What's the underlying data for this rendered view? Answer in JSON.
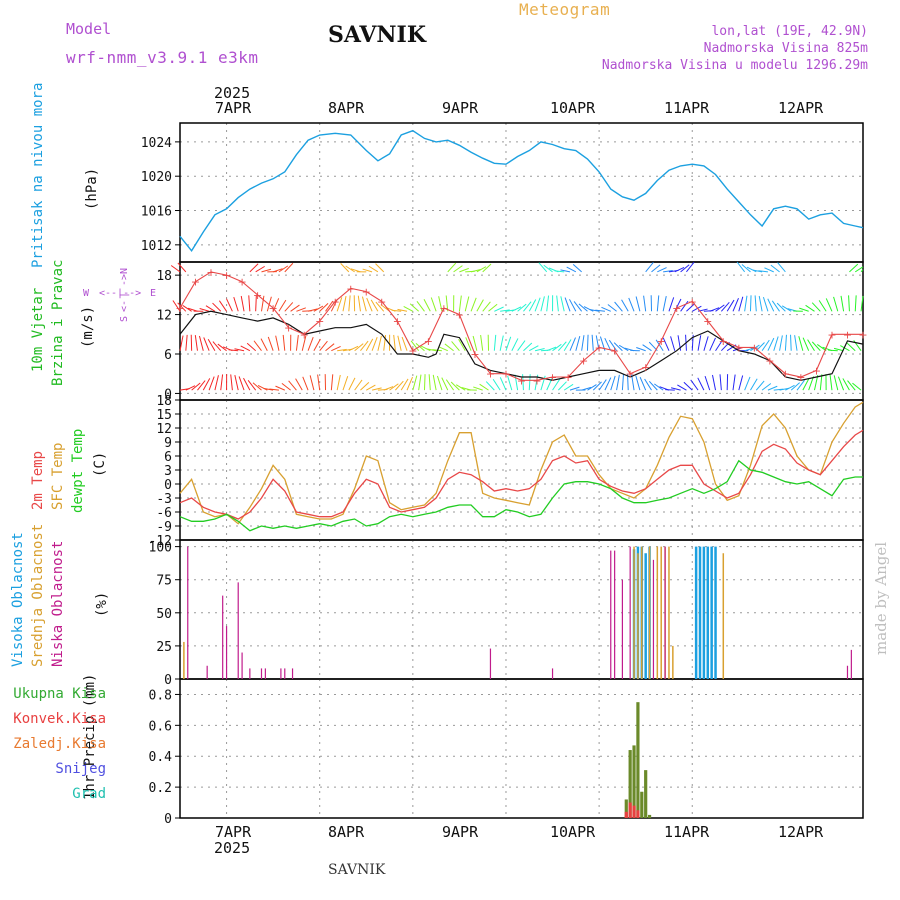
{
  "header": {
    "model_label": "Model",
    "model_name": "wrf-nmm_v3.9.1 e3km",
    "station": "SAVNIK",
    "product": "Meteogram",
    "lonlat": "lon,lat (19E, 42.9N)",
    "altitude": "Nadmorska Visina 825m",
    "model_altitude": "Nadmorska Visina u modelu 1296.29m",
    "year": "2025",
    "footer_station": "SAVNIK",
    "watermark": "made by Angel"
  },
  "colors": {
    "pressure": "#1ca0e0",
    "wind_label": "#22bb22",
    "temp2m": "#e84848",
    "tsfc": "#d8a030",
    "dewpt": "#22cc22",
    "cloud_high": "#1ca0e0",
    "cloud_mid": "#d8a030",
    "cloud_low": "#c01c8c",
    "precip_total": "#33aa33",
    "precip_conv": "#e84040",
    "precip_frz": "#e87a30",
    "snow": "#5050e0",
    "hail": "#20c0b0",
    "header_purple": "#b050d0",
    "header_orange": "#e8b050"
  },
  "days": [
    "7APR",
    "8APR",
    "9APR",
    "10APR",
    "11APR",
    "12APR"
  ],
  "panels": {
    "pressure": {
      "label1": "Pritisak na nivou mora",
      "unit": "(hPa)"
    },
    "wind": {
      "label1": "10m Vjetar",
      "label2": "Brzina i Pravac",
      "unit": "(m/s)",
      "compass_n": "N",
      "compass_s": "S",
      "compass_w": "W",
      "compass_e": "E"
    },
    "temp": {
      "label1": "2m Temp",
      "label2": "SFC Temp",
      "label3": "dewpt Temp",
      "unit": "(C)"
    },
    "cloud": {
      "label1": "Visoka Oblacnost",
      "label2": "Srednja Oblacnost",
      "label3": "Niska Oblacnost",
      "unit": "(%)"
    },
    "precip": {
      "unit_label": "1hr Precip (mm)",
      "legend": [
        "Ukupna Kisa",
        "Konvek.Kisa",
        "Zaledj.Kisa",
        "Snijeg",
        "Grad"
      ]
    }
  },
  "chart_data": [
    {
      "type": "line",
      "name": "pressure",
      "title": "Pritisak na nivou mora",
      "ylabel": "(hPa)",
      "ylim": [
        1010,
        1026.2
      ],
      "yticks": [
        1012,
        1016,
        1020,
        1024
      ],
      "grid": true,
      "x_unit": "hours since 2025-04-06 12:00",
      "series": [
        {
          "name": "MSLP",
          "x": [
            0,
            3,
            6,
            9,
            12,
            15,
            18,
            21,
            24,
            27,
            30,
            33,
            36,
            40,
            44,
            48,
            51,
            54,
            57,
            60,
            63,
            66,
            69,
            72,
            75,
            78,
            81,
            84,
            87,
            90,
            93,
            96,
            99,
            102,
            105,
            108,
            111,
            114,
            117,
            120,
            123,
            126,
            129,
            132,
            135,
            138,
            141,
            144,
            147,
            150,
            153,
            156,
            159,
            162,
            165,
            168,
            171,
            174,
            176
          ],
          "values": [
            1013,
            1011.3,
            1013.5,
            1015.5,
            1016.2,
            1017.5,
            1018.5,
            1019.2,
            1019.7,
            1020.5,
            1022.5,
            1024.2,
            1024.8,
            1025,
            1024.8,
            1023,
            1021.8,
            1022.6,
            1024.8,
            1025.3,
            1024.4,
            1024,
            1024.2,
            1023.6,
            1022.8,
            1022.1,
            1021.5,
            1021.4,
            1022.3,
            1023,
            1024,
            1023.7,
            1023.2,
            1023,
            1022,
            1020.5,
            1018.5,
            1017.6,
            1017.2,
            1018,
            1019.5,
            1020.7,
            1021.2,
            1021.4,
            1021.2,
            1020.2,
            1018.5,
            1017,
            1015.5,
            1014.2,
            1016.2,
            1016.5,
            1016.2,
            1015,
            1015.5,
            1015.7,
            1014.5,
            1014.2,
            1014
          ]
        }
      ]
    },
    {
      "type": "line",
      "name": "wind",
      "title": "10m Vjetar Brzina i Pravac",
      "ylabel": "(m/s)",
      "ylim": [
        -1,
        20
      ],
      "yticks": [
        0,
        6,
        12,
        18
      ],
      "grid": true,
      "series": [
        {
          "name": "speed",
          "x": [
            0,
            4,
            8,
            12,
            16,
            20,
            24,
            28,
            32,
            36,
            40,
            44,
            48,
            52,
            56,
            60,
            64,
            66,
            68,
            72,
            76,
            80,
            84,
            88,
            92,
            96,
            100,
            104,
            108,
            112,
            116,
            120,
            124,
            128,
            132,
            136,
            140,
            144,
            148,
            152,
            156,
            160,
            164,
            168,
            172,
            176
          ],
          "values": [
            9,
            12,
            12.5,
            12,
            11.5,
            11,
            11.5,
            10.5,
            9,
            9.5,
            10,
            10,
            10.5,
            9,
            6,
            6,
            5.5,
            6,
            9,
            8.5,
            4.5,
            3.5,
            3,
            2.5,
            2.5,
            2,
            2.5,
            3,
            3.5,
            3.5,
            2.5,
            3.5,
            5,
            6.5,
            8.5,
            9.5,
            8,
            6.5,
            6,
            5,
            2.5,
            2,
            2.5,
            3,
            8,
            7.5
          ]
        },
        {
          "name": "gust",
          "x": [
            0,
            4,
            8,
            12,
            16,
            20,
            24,
            28,
            32,
            36,
            40,
            44,
            48,
            52,
            56,
            60,
            64,
            68,
            72,
            76,
            80,
            84,
            88,
            92,
            96,
            100,
            104,
            108,
            112,
            116,
            120,
            124,
            128,
            132,
            136,
            140,
            144,
            148,
            152,
            156,
            160,
            164,
            168,
            172,
            176
          ],
          "values": [
            13,
            17,
            18.5,
            18,
            17,
            15,
            13,
            10,
            9,
            11,
            14,
            16,
            15.5,
            14,
            11,
            6.5,
            8,
            13,
            12,
            6,
            3,
            3,
            2,
            2,
            2.5,
            2.5,
            5,
            7,
            6.5,
            3,
            4,
            8,
            13,
            14,
            11,
            8,
            7,
            7,
            5,
            3,
            2.5,
            3.5,
            9,
            9,
            9
          ]
        }
      ]
    },
    {
      "type": "line",
      "name": "temperature",
      "title": "2m Temp / SFC Temp / dewpt Temp",
      "ylabel": "(C)",
      "ylim": [
        -12,
        18
      ],
      "yticks": [
        -12,
        -9,
        -6,
        -3,
        0,
        3,
        6,
        9,
        12,
        15,
        18
      ],
      "grid": true,
      "series": [
        {
          "name": "2m Temp",
          "x": [
            0,
            3,
            6,
            9,
            12,
            15,
            18,
            21,
            24,
            27,
            30,
            33,
            36,
            39,
            42,
            45,
            48,
            51,
            54,
            57,
            60,
            63,
            66,
            69,
            72,
            75,
            78,
            81,
            84,
            87,
            90,
            93,
            96,
            99,
            102,
            105,
            108,
            111,
            114,
            117,
            120,
            123,
            126,
            129,
            132,
            135,
            138,
            141,
            144,
            147,
            150,
            153,
            156,
            159,
            162,
            165,
            168,
            171,
            174,
            176
          ],
          "values": [
            -4,
            -3,
            -5,
            -6,
            -6.5,
            -7.5,
            -6,
            -3,
            1,
            -1.5,
            -6,
            -6.5,
            -7,
            -7,
            -6,
            -2,
            1,
            0,
            -5,
            -6,
            -5.5,
            -5,
            -3,
            1,
            2.5,
            2,
            0.5,
            -1.5,
            -1,
            -1.5,
            -1,
            1,
            5,
            6,
            4.5,
            5,
            1,
            -0.5,
            -1.5,
            -2,
            -1,
            1,
            3,
            4,
            4,
            0,
            -1.5,
            -3,
            -2,
            2,
            7,
            8.5,
            7.5,
            4.5,
            3,
            2,
            5,
            8,
            10.5,
            11.5
          ]
        },
        {
          "name": "SFC Temp",
          "x": [
            0,
            3,
            6,
            9,
            12,
            15,
            18,
            21,
            24,
            27,
            30,
            33,
            36,
            39,
            42,
            45,
            48,
            51,
            54,
            57,
            60,
            63,
            66,
            69,
            72,
            75,
            78,
            81,
            84,
            87,
            90,
            93,
            96,
            99,
            102,
            105,
            108,
            111,
            114,
            117,
            120,
            123,
            126,
            129,
            132,
            135,
            138,
            141,
            144,
            147,
            150,
            153,
            156,
            159,
            162,
            165,
            168,
            171,
            174,
            176
          ],
          "values": [
            -2,
            1,
            -6,
            -7,
            -6.5,
            -8.5,
            -5,
            -1,
            4,
            1,
            -6.5,
            -7,
            -7.5,
            -7.5,
            -6.5,
            -1,
            6,
            5,
            -4,
            -5.5,
            -5,
            -4.5,
            -2,
            5,
            11,
            11,
            -2,
            -3,
            -3.5,
            -4,
            -4.5,
            3,
            9,
            10.5,
            6,
            6,
            2,
            -1,
            -2,
            -3,
            -1,
            4,
            10,
            14.5,
            14,
            9,
            0,
            -3.5,
            -2.5,
            4,
            12.5,
            15,
            12,
            6,
            3,
            2,
            9,
            13,
            16.5,
            17.5
          ]
        },
        {
          "name": "dewpt Temp",
          "x": [
            0,
            3,
            6,
            9,
            12,
            15,
            18,
            21,
            24,
            27,
            30,
            33,
            36,
            39,
            42,
            45,
            48,
            51,
            54,
            57,
            60,
            63,
            66,
            69,
            72,
            75,
            78,
            81,
            84,
            87,
            90,
            93,
            96,
            99,
            102,
            105,
            108,
            111,
            114,
            117,
            120,
            123,
            126,
            129,
            132,
            135,
            138,
            141,
            144,
            147,
            150,
            153,
            156,
            159,
            162,
            165,
            168,
            171,
            174,
            176
          ],
          "values": [
            -7,
            -8,
            -8,
            -7.5,
            -6.5,
            -8,
            -10,
            -9,
            -9.5,
            -9,
            -9.5,
            -9,
            -8.5,
            -9,
            -8,
            -7.5,
            -9,
            -8.5,
            -7,
            -6.5,
            -7,
            -6.5,
            -6,
            -5,
            -4.5,
            -4.5,
            -7,
            -7,
            -5.5,
            -6,
            -7,
            -6.5,
            -3,
            0,
            0.5,
            0.5,
            0,
            -1,
            -3,
            -4,
            -4,
            -3.5,
            -3,
            -2,
            -1,
            -2,
            -1,
            0.5,
            5,
            3,
            2.5,
            1.5,
            0.5,
            0,
            0.5,
            -1,
            -2.5,
            1,
            1.5,
            1.5
          ]
        }
      ]
    },
    {
      "type": "bar",
      "name": "cloud",
      "title": "Visoka / Srednja / Niska Oblacnost",
      "ylabel": "(%)",
      "ylim": [
        0,
        105
      ],
      "yticks": [
        0,
        25,
        50,
        75,
        100
      ],
      "grid": true,
      "series": [
        {
          "name": "Visoka Oblacnost",
          "x": [
            117,
            118,
            119,
            120,
            121,
            133,
            134,
            135,
            136,
            137,
            138
          ],
          "values": [
            98,
            100,
            100,
            95,
            100,
            100,
            100,
            100,
            100,
            100,
            100
          ]
        },
        {
          "name": "Srednja Oblacnost",
          "x": [
            1,
            117,
            118,
            119,
            121,
            123,
            124,
            125,
            126,
            127,
            140
          ],
          "values": [
            28,
            100,
            95,
            100,
            100,
            100,
            100,
            100,
            100,
            25,
            95
          ]
        },
        {
          "name": "Niska Oblacnost",
          "x": [
            2,
            7,
            11,
            12,
            15,
            16,
            18,
            21,
            22,
            26,
            27,
            29,
            80,
            96,
            111,
            112,
            114,
            116,
            122,
            125,
            172,
            173
          ],
          "values": [
            100,
            10,
            63,
            40,
            73,
            20,
            8,
            8,
            8,
            8,
            8,
            8,
            23,
            8,
            97,
            97,
            75,
            100,
            90,
            100,
            10,
            22
          ]
        }
      ]
    },
    {
      "type": "bar",
      "name": "precipitation",
      "title": "1hr Precip",
      "ylabel": "1hr Precip (mm)",
      "ylim": [
        0,
        0.9
      ],
      "yticks": [
        0,
        0.2,
        0.4,
        0.6,
        0.8
      ],
      "grid": true,
      "series": [
        {
          "name": "Ukupna Kisa",
          "x": [
            115,
            116,
            117,
            118,
            119,
            120,
            121
          ],
          "values": [
            0.12,
            0.44,
            0.47,
            0.75,
            0.17,
            0.31,
            0.02
          ]
        },
        {
          "name": "Konvek.Kisa",
          "x": [
            115,
            116,
            117,
            118
          ],
          "values": [
            0.04,
            0.1,
            0.08,
            0.05
          ]
        },
        {
          "name": "Zaledj.Kisa",
          "x": [],
          "values": []
        },
        {
          "name": "Snijeg",
          "x": [],
          "values": []
        },
        {
          "name": "Grad",
          "x": [],
          "values": []
        }
      ]
    }
  ]
}
